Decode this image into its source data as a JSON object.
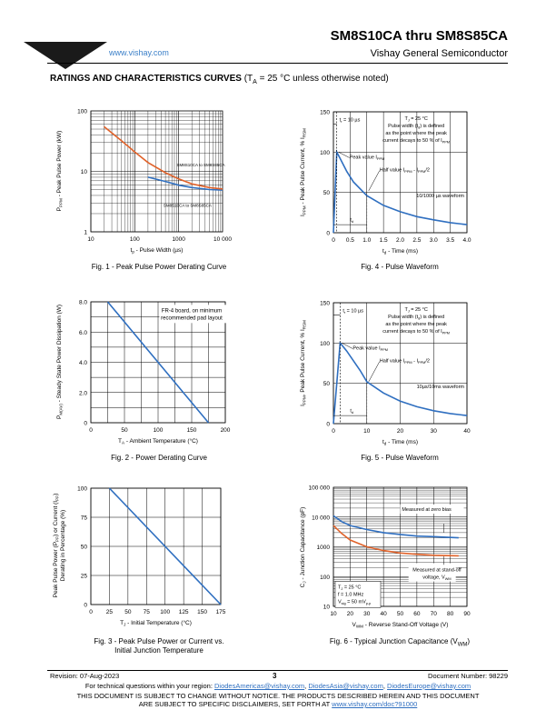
{
  "header": {
    "logo_text": "VISHAY.",
    "url": "www.vishay.com",
    "doc_title": "SM8S10CA thru SM8S85CA",
    "company": "Vishay General Semiconductor",
    "accent_color": "#2f6fc0"
  },
  "section": {
    "title": "RATINGS AND CHARACTERISTICS CURVES",
    "cond_prefix": " (T",
    "cond_sub": "A",
    "cond_suffix": " = 25 °C unless otherwise noted)"
  },
  "figures": {
    "fig1": {
      "caption": "Fig. 1 - Peak Pulse Power Derating Curve"
    },
    "fig2": {
      "caption": "Fig. 2 - Power Derating Curve"
    },
    "fig3": {
      "caption_line1": "Fig. 3 - Peak Pulse Power or Current vs.",
      "caption_line2": "Initial Junction Temperature"
    },
    "fig4": {
      "caption": "Fig. 4 - Pulse Waveform"
    },
    "fig5": {
      "caption": "Fig. 5 - Pulse Waveform"
    },
    "fig6": {
      "caption": "Fig. 6 - Typical Junction Capacitance (V",
      "caption_sub": "WM",
      "caption_end": ")"
    }
  },
  "chart_data": [
    {
      "id": "fig1",
      "type": "line",
      "xscale": "log",
      "yscale": "log",
      "xlim": [
        10,
        10000
      ],
      "ylim": [
        1,
        100
      ],
      "xticks": [
        "10",
        "100",
        "1000",
        "10 000"
      ],
      "yticks": [
        "1",
        "10",
        "100"
      ],
      "xlabel": "t",
      "xlabel_sub": "p",
      "xlabel_suffix": " - Pulse Width (µs)",
      "ylabel": "P",
      "ylabel_sub": "PPM",
      "ylabel_suffix": " - Peak Pulse Power (kW)",
      "series": [
        {
          "name": "SM8S10CA to SM8S85CA",
          "color": "#2f6fc0",
          "x": [
            200,
            500,
            1000,
            2000,
            5000,
            10000
          ],
          "y": [
            8.0,
            6.8,
            5.9,
            5.4,
            5.0,
            4.9
          ]
        },
        {
          "name": "SM8S10CA to SM8S85CA",
          "color": "#e0622a",
          "x": [
            20,
            50,
            100,
            200,
            500,
            1000,
            2000,
            5000,
            10000
          ],
          "y": [
            55,
            32,
            21,
            14,
            9.5,
            7.5,
            6.2,
            5.4,
            5.1
          ]
        }
      ],
      "annotations": [
        "SM8S10CA to SM8S85CA",
        "SM8S10CA to SM8S85CA"
      ]
    },
    {
      "id": "fig2",
      "type": "line",
      "xlim": [
        0,
        200
      ],
      "ylim": [
        0,
        8.0
      ],
      "xticks": [
        "0",
        "50",
        "100",
        "150",
        "200"
      ],
      "yticks": [
        "0",
        "2.0",
        "4.0",
        "6.0",
        "8.0"
      ],
      "xlabel": "T",
      "xlabel_sub": "A",
      "xlabel_suffix": " - Ambient Temperature (°C)",
      "ylabel": "P",
      "ylabel_sub": "M(AV)",
      "ylabel_suffix": " - Steady State Power Dissipation (W)",
      "series": [
        {
          "color": "#2f6fc0",
          "x": [
            25,
            175
          ],
          "y": [
            8.0,
            0
          ]
        }
      ],
      "annotations": [
        "FR-4 board, on minimum",
        "recommended pad layout"
      ]
    },
    {
      "id": "fig3",
      "type": "line",
      "xlim": [
        0,
        175
      ],
      "ylim": [
        0,
        100
      ],
      "xticks": [
        "0",
        "25",
        "50",
        "75",
        "100",
        "125",
        "150",
        "175"
      ],
      "yticks": [
        "0",
        "25",
        "50",
        "75",
        "100"
      ],
      "xlabel": "T",
      "xlabel_sub": "J",
      "xlabel_suffix": " - Initial Temperature (°C)",
      "ylabel_line1": "Peak Pulse Power (P",
      "ylabel_line1_sub": "PP",
      "ylabel_line1_suffix": ") or Current (I",
      "ylabel_line1_sub2": "PP",
      "ylabel_line1_end": ")",
      "ylabel_line2": "Derating in Percentage (%)",
      "series": [
        {
          "color": "#2f6fc0",
          "x": [
            25,
            175
          ],
          "y": [
            100,
            0
          ]
        }
      ]
    },
    {
      "id": "fig4",
      "type": "line",
      "xlim": [
        0,
        4.0
      ],
      "ylim": [
        0,
        150
      ],
      "xticks": [
        "0",
        "0.5",
        "1.0",
        "1.5",
        "2.0",
        "2.5",
        "3.0",
        "3.5",
        "4.0"
      ],
      "yticks": [
        "0",
        "50",
        "100",
        "150"
      ],
      "xlabel": "t",
      "xlabel_sub": "d",
      "xlabel_suffix": " - Time (ms)",
      "ylabel": "I",
      "ylabel_sub": "PPM",
      "ylabel_suffix": " - Peak Pulse Current, % I",
      "ylabel_sub2": "RSM",
      "series": [
        {
          "color": "#2f6fc0",
          "x": [
            0,
            0.1,
            0.2,
            0.4,
            0.6,
            1.0,
            1.5,
            2.0,
            2.5,
            3.0,
            3.5,
            4.0
          ],
          "y": [
            0,
            100,
            92,
            76,
            63,
            46,
            34,
            26,
            20,
            16,
            12.5,
            10
          ]
        }
      ],
      "annotations": [
        "t",
        "r",
        " = 10 µs",
        "T",
        "J",
        " = 25 °C",
        "Pulse width (t",
        "d",
        ") is defined",
        "as the point where the peak",
        "current decays to 50 % of I",
        "PPM",
        "Peak value I",
        "PPM",
        "Half value I",
        "PPM",
        " - I",
        "PPM",
        "/2",
        "10/1000 µs waveform",
        "t",
        "d"
      ]
    },
    {
      "id": "fig5",
      "type": "line",
      "xlim": [
        0,
        40
      ],
      "ylim": [
        0,
        150
      ],
      "xticks": [
        "0",
        "10",
        "20",
        "30",
        "40"
      ],
      "yticks": [
        "0",
        "50",
        "100",
        "150"
      ],
      "xlabel": "t",
      "xlabel_sub": "d",
      "xlabel_suffix": " - Time (ms)",
      "ylabel": "I",
      "ylabel_sub": "PPM",
      "ylabel_suffix": ", Peak Pulse Current, % I",
      "ylabel_sub2": "RSM",
      "series": [
        {
          "color": "#2f6fc0",
          "x": [
            0,
            2,
            4,
            6,
            8,
            10,
            15,
            20,
            25,
            30,
            35,
            40
          ],
          "y": [
            0,
            100,
            90,
            78,
            66,
            52,
            38,
            28,
            21,
            16,
            12.5,
            10
          ]
        }
      ],
      "annotations": [
        "t",
        "r",
        " = 10 µs",
        "T",
        "J",
        " = 25 °C",
        "Pulse width (t",
        "d",
        ") is defined",
        "as the point where the peak",
        "current decays to 50 % of I",
        "PPM",
        "Peak value I",
        "PPM",
        "Half value I",
        "PPM",
        " - I",
        "PPM",
        "/2",
        "10µs/10ms waveform",
        "t",
        "d"
      ]
    },
    {
      "id": "fig6",
      "type": "line",
      "yscale": "log",
      "xlim": [
        10,
        90
      ],
      "ylim": [
        10,
        100000
      ],
      "xticks": [
        "10",
        "20",
        "30",
        "40",
        "50",
        "60",
        "70",
        "80",
        "90"
      ],
      "yticks": [
        "10",
        "100",
        "1000",
        "10 000",
        "100 000"
      ],
      "xlabel": "V",
      "xlabel_sub": "WM",
      "xlabel_suffix": " - Reverse Stand-Off Voltage (V)",
      "ylabel": "C",
      "ylabel_sub": "J",
      "ylabel_suffix": " - Junction Capacitance (pF)",
      "series": [
        {
          "name": "Measured at zero bias",
          "color": "#2f6fc0",
          "x": [
            10,
            15,
            20,
            30,
            40,
            50,
            60,
            70,
            85
          ],
          "y": [
            11000,
            7000,
            5200,
            3800,
            3000,
            2600,
            2300,
            2200,
            2000
          ]
        },
        {
          "name": "Measured at stand-off voltage, V",
          "color": "#e0622a",
          "x": [
            10,
            15,
            20,
            30,
            40,
            50,
            60,
            70,
            85
          ],
          "y": [
            5200,
            2800,
            1700,
            1000,
            750,
            620,
            560,
            520,
            500
          ]
        }
      ],
      "annotations": [
        "Measured at zero bias",
        "Measured at stand-off",
        "voltage, V",
        "WM",
        "T",
        "J",
        " = 25 °C",
        "f = 1.0 MHz",
        "V",
        "sig",
        " = 50 mV",
        "p-p"
      ]
    }
  ],
  "footer": {
    "revision": "Revision: 07-Aug-2023",
    "page": "3",
    "doc_number": "Document Number: 98229",
    "questions_prefix": "For technical questions within your region: ",
    "email1": "DiodesAmericas@vishay.com",
    "email2": "DiodesAsia@vishay.com",
    "email3": "DiodesEurope@vishay.com",
    "sep": ", ",
    "disclaimer1": "THIS DOCUMENT IS SUBJECT TO CHANGE WITHOUT NOTICE. THE PRODUCTS DESCRIBED HEREIN AND THIS DOCUMENT",
    "disclaimer2_prefix": "ARE SUBJECT TO SPECIFIC DISCLAIMERS, SET FORTH AT ",
    "disclaimer_link": "www.vishay.com/doc?91000"
  }
}
